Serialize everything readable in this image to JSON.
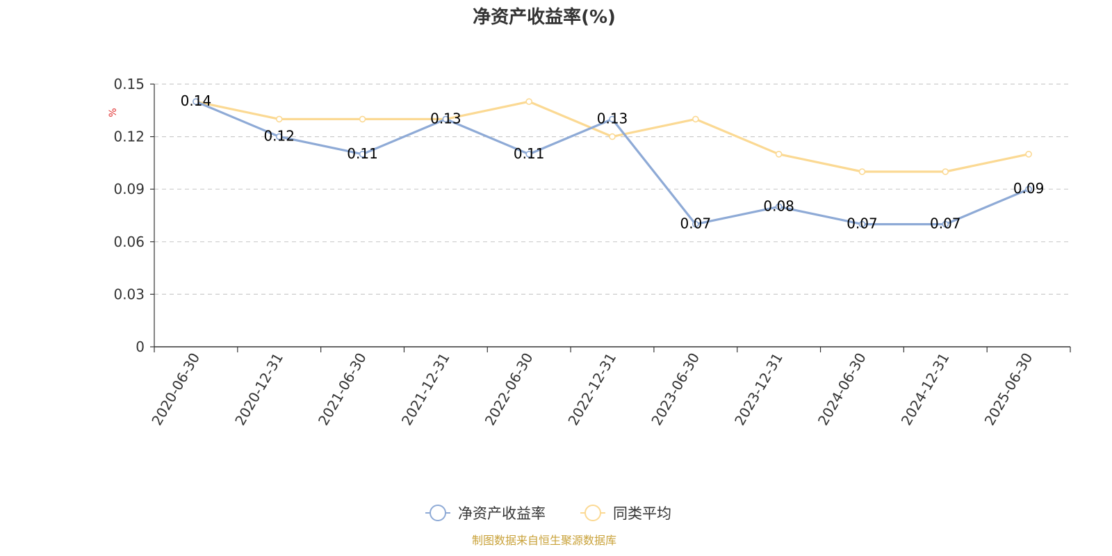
{
  "chart_data": {
    "type": "line",
    "title": "净资产收益率(%)",
    "ylabel": "%",
    "ylim": [
      0,
      0.15
    ],
    "yticks": [
      "0",
      "0.03",
      "0.06",
      "0.09",
      "0.12",
      "0.15"
    ],
    "grid": true,
    "legend_placement": "bottom-center",
    "categories": [
      "2020-06-30",
      "2020-12-31",
      "2021-06-30",
      "2021-12-31",
      "2022-06-30",
      "2022-12-31",
      "2023-06-30",
      "2023-12-31",
      "2024-06-30",
      "2024-12-31",
      "2025-06-30"
    ],
    "series": [
      {
        "name": "净资产收益率",
        "color": "#8eaad6",
        "values": [
          0.14,
          0.12,
          0.11,
          0.13,
          0.11,
          0.13,
          0.07,
          0.08,
          0.07,
          0.07,
          0.09
        ],
        "labels": [
          "0.14",
          "0.12",
          "0.11",
          "0.13",
          "0.11",
          "0.13",
          "0.07",
          "0.08",
          "0.07",
          "0.07",
          "0.09"
        ]
      },
      {
        "name": "同类平均",
        "color": "#fbd993",
        "values": [
          0.14,
          0.13,
          0.13,
          0.13,
          0.14,
          0.12,
          0.13,
          0.11,
          0.1,
          0.1,
          0.11
        ]
      }
    ]
  },
  "source_note": "制图数据来自恒生聚源数据库"
}
